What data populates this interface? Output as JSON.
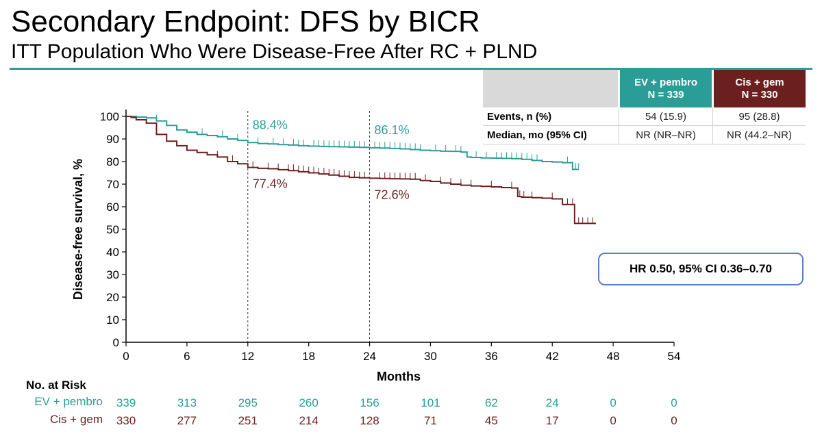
{
  "header": {
    "title": "Secondary Endpoint: DFS by BICR",
    "subtitle": "ITT Population Who Were Disease-Free After RC + PLND"
  },
  "colors": {
    "ev": "#2a9d97",
    "cis": "#6b1f1f",
    "accent_rule": "#2a9d97",
    "hr_border": "#5b7fc3"
  },
  "stats_table": {
    "ev_header": {
      "line1": "EV + pembro",
      "line2": "N = 339"
    },
    "cis_header": {
      "line1": "Cis + gem",
      "line2": "N = 330"
    },
    "rows": [
      {
        "label": "Events, n (%)",
        "ev": "54 (15.9)",
        "cis": "95 (28.8)"
      },
      {
        "label": "Median, mo (95% CI)",
        "ev": "NR (NR–NR)",
        "cis": "NR (44.2–NR)"
      }
    ]
  },
  "hr_text": "HR 0.50, 95% CI 0.36–0.70",
  "risk_table": {
    "heading": "No. at Risk",
    "rows": [
      {
        "label": "EV + pembro",
        "values": [
          "339",
          "313",
          "295",
          "260",
          "156",
          "101",
          "62",
          "24",
          "0",
          "0"
        ]
      },
      {
        "label": "Cis + gem",
        "values": [
          "330",
          "277",
          "251",
          "214",
          "128",
          "71",
          "45",
          "17",
          "0",
          "0"
        ]
      }
    ]
  },
  "chart_data": {
    "type": "line",
    "xlabel": "Months",
    "ylabel": "Disease-free survival, %",
    "xlim": [
      0,
      54
    ],
    "ylim": [
      0,
      100
    ],
    "xticks": [
      "0",
      "6",
      "12",
      "18",
      "24",
      "30",
      "36",
      "42",
      "48",
      "54"
    ],
    "yticks": [
      "0",
      "10",
      "20",
      "30",
      "40",
      "50",
      "60",
      "70",
      "80",
      "90",
      "100"
    ],
    "reference_lines_x": [
      12,
      24
    ],
    "annotations": [
      {
        "series": "EV + pembro",
        "x": 12,
        "text": "88.4%"
      },
      {
        "series": "EV + pembro",
        "x": 24,
        "text": "86.1%"
      },
      {
        "series": "Cis + gem",
        "x": 12,
        "text": "77.4%"
      },
      {
        "series": "Cis + gem",
        "x": 24,
        "text": "72.6%"
      }
    ],
    "series": [
      {
        "name": "EV + pembro",
        "x": [
          0,
          1,
          2,
          3,
          4,
          5,
          6,
          7,
          8,
          9,
          10,
          11,
          12,
          13,
          14,
          15,
          16,
          17,
          18,
          19,
          20,
          21,
          22,
          23,
          24,
          25,
          26,
          27,
          28,
          29,
          30,
          31,
          32,
          33,
          33.6,
          34,
          35,
          36,
          37,
          38,
          39,
          40,
          41,
          42,
          43,
          44,
          44.6
        ],
        "y": [
          100,
          99.7,
          99.3,
          98,
          96,
          94,
          93,
          92,
          91.5,
          91,
          90,
          89.4,
          88.4,
          88,
          87.8,
          87.5,
          87.3,
          87,
          86.8,
          86.7,
          86.6,
          86.5,
          86.4,
          86.3,
          86.1,
          86,
          85.8,
          85.6,
          85.3,
          85,
          84.8,
          84.6,
          84.5,
          84.2,
          82,
          81.8,
          81.6,
          81.5,
          81.4,
          81.3,
          81,
          80.5,
          80,
          79.8,
          79.5,
          76.5,
          76.5
        ],
        "censor_x": [
          3,
          7.5,
          9.5,
          11,
          13,
          14.5,
          15.5,
          16.5,
          17,
          17.5,
          18.5,
          19,
          19.5,
          20,
          20.5,
          21,
          21.5,
          22,
          22.5,
          23,
          23.5,
          24.5,
          25,
          25.5,
          26,
          26.5,
          27,
          27.5,
          28,
          28.5,
          29,
          30.5,
          31.5,
          32.5,
          33,
          34.5,
          35.5,
          36.5,
          37,
          37.5,
          38,
          38.5,
          39,
          39.5,
          40,
          40.5,
          43.5,
          44,
          44.3,
          44.6
        ]
      },
      {
        "name": "Cis + gem",
        "x": [
          0,
          0.5,
          1,
          2,
          3,
          4,
          5,
          6,
          7,
          8,
          9,
          10,
          11,
          12,
          13,
          14,
          15,
          16,
          17,
          18,
          19,
          20,
          21,
          22,
          23,
          24,
          25,
          26,
          27,
          28,
          29,
          30,
          31,
          32,
          33,
          34,
          35,
          36,
          37,
          38,
          38.6,
          39,
          40,
          41,
          42,
          43,
          44,
          44.2,
          46.3
        ],
        "y": [
          100,
          99.5,
          98.5,
          97,
          92,
          89,
          87,
          85,
          84,
          83,
          82,
          80,
          79,
          77.4,
          77,
          76.8,
          76.4,
          76,
          75.5,
          75,
          74.5,
          74,
          73.5,
          73,
          72.8,
          72.6,
          72.5,
          72.4,
          72.3,
          72.2,
          71.6,
          71.2,
          70.5,
          70,
          69.5,
          69.2,
          69,
          68.8,
          68.5,
          68.3,
          64.5,
          64.2,
          64,
          63.8,
          63.5,
          61,
          61,
          52.6,
          52.6
        ],
        "censor_x": [
          4,
          9,
          10.5,
          12.5,
          14,
          15,
          16,
          16.5,
          17,
          17.5,
          18,
          18.5,
          19,
          19.5,
          20,
          20.5,
          21,
          21.5,
          22,
          22.5,
          23,
          23.5,
          25,
          25.5,
          26,
          26.5,
          27,
          27.5,
          28,
          28.5,
          29.5,
          31,
          32,
          33,
          34,
          36,
          38,
          38.8,
          39.2,
          40,
          42,
          43.5,
          44,
          44.6,
          45,
          45.5,
          46
        ]
      }
    ]
  }
}
